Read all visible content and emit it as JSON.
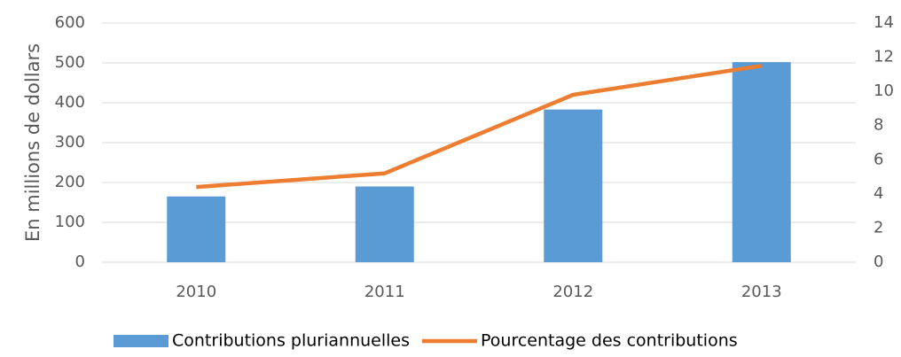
{
  "chart_data": {
    "type": "bar",
    "ylabel": "En millions de dollars",
    "categories": [
      "2010",
      "2011",
      "2012",
      "2013"
    ],
    "series": [
      {
        "name": "Contributions pluriannuelles",
        "type": "bar",
        "color": "#5b9bd5",
        "values": [
          165,
          190,
          383,
          502
        ]
      },
      {
        "name": "Pourcentage des contributions",
        "type": "line",
        "color": "#ed7d31",
        "axis": "y2",
        "values": [
          4.4,
          5.2,
          9.8,
          11.5
        ]
      }
    ],
    "ylim": [
      0,
      600
    ],
    "yticks": [
      0,
      100,
      200,
      300,
      400,
      500,
      600
    ],
    "y2lim": [
      0,
      14
    ],
    "y2ticks": [
      0,
      2,
      4,
      6,
      8,
      10,
      12,
      14
    ],
    "grid": true,
    "legend": "bottom"
  }
}
